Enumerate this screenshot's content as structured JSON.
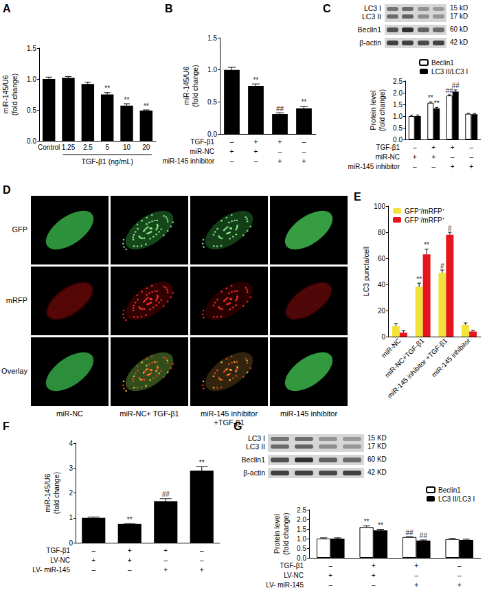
{
  "chart_data": [
    {
      "title": "A",
      "type": "bar",
      "categories": [
        "Control",
        "1.25",
        "2.5",
        "5",
        "10",
        "20"
      ],
      "group_label": "TGF-β1 (ng/mL)",
      "y_label": "miR-145/U6\n(fold change)",
      "ylim": [
        0,
        1.5
      ],
      "yticks": [
        {
          "value": 0,
          "label": "0.0"
        },
        {
          "value": 0.5,
          "label": "0.5"
        },
        {
          "value": 1,
          "label": "1.0"
        },
        {
          "value": 1.5,
          "label": "1.5"
        }
      ],
      "grid": false,
      "color": "#000000",
      "values": [
        1.0,
        1.02,
        0.92,
        0.75,
        0.57,
        0.49
      ],
      "errors": [
        0.03,
        0.02,
        0.03,
        0.03,
        0.03,
        0.01
      ],
      "annotations": [
        null,
        null,
        null,
        "**",
        "**",
        "**"
      ]
    },
    {
      "title": "B",
      "type": "bar",
      "y_label": "miR-145/U6\n(fold change)",
      "ylim": [
        0,
        1.5
      ],
      "yticks": [
        {
          "value": 0,
          "label": "0.0"
        },
        {
          "value": 0.5,
          "label": "0.5"
        },
        {
          "value": 1,
          "label": "1.0"
        },
        {
          "value": 1.5,
          "label": "1.5"
        }
      ],
      "grid": false,
      "color": "#000000",
      "values": [
        1.0,
        0.75,
        0.31,
        0.4
      ],
      "errors": [
        0.04,
        0.03,
        0.02,
        0.03
      ],
      "annotations": [
        null,
        "**",
        "##",
        "**"
      ],
      "conditions": [
        {
          "label": "TGF-β1",
          "values": [
            "–",
            "+",
            "+",
            "–"
          ]
        },
        {
          "label": "miR-NC",
          "values": [
            "+",
            "+",
            "–",
            "–"
          ]
        },
        {
          "label": "miR-145 inhibitor",
          "values": [
            "–",
            "–",
            "+",
            "+"
          ]
        }
      ]
    },
    {
      "title": "C",
      "type": "bar",
      "y_label": "Protein level\n(fold change)",
      "ylim": [
        0,
        2.5
      ],
      "yticks": [
        {
          "value": 0,
          "label": "0.0"
        },
        {
          "value": 0.5,
          "label": "0.5"
        },
        {
          "value": 1,
          "label": "1.0"
        },
        {
          "value": 1.5,
          "label": "1.5"
        },
        {
          "value": 2,
          "label": "2.0"
        },
        {
          "value": 2.5,
          "label": "2.5"
        }
      ],
      "grid": false,
      "legend": "top-right",
      "series": [
        {
          "name": "Beclin1",
          "color": "#ffffff",
          "values": [
            1.0,
            1.57,
            1.88,
            1.1
          ],
          "errors": [
            0.04,
            0.04,
            0.03,
            0.02
          ],
          "annotations": [
            null,
            "**",
            "##",
            null
          ]
        },
        {
          "name": "LC3 II/LC3 I",
          "color": "#000000",
          "values": [
            1.0,
            1.33,
            2.05,
            1.08
          ],
          "errors": [
            0.05,
            0.04,
            0.07,
            0.03
          ],
          "annotations": [
            null,
            "**",
            "##",
            null
          ]
        }
      ],
      "conditions": [
        {
          "label": "TGF-β1",
          "values": [
            "–",
            "+",
            "+",
            "–"
          ]
        },
        {
          "label": "miR-NC",
          "values": [
            "+",
            "+",
            "–",
            "–"
          ]
        },
        {
          "label": "miR-145 inhibitor",
          "values": [
            "–",
            "–",
            "+",
            "+"
          ]
        }
      ]
    },
    {
      "title": "E",
      "type": "bar",
      "categories": [
        "miR-NC",
        "miR-NC+TGF-β1",
        "miR-145 inhibitor +TGF-β1",
        "miR-145 inhibitor"
      ],
      "y_label": "LC3 puncta/cell",
      "ylim": [
        0,
        100
      ],
      "yticks": [
        0,
        20,
        40,
        60,
        80,
        100
      ],
      "grid": false,
      "legend": "top-left",
      "series": [
        {
          "name": "GFP⁺/mRFP⁺",
          "color": "#f2e33a",
          "values": [
            8,
            38,
            49,
            9
          ],
          "errors": [
            2,
            3,
            2,
            1.5
          ],
          "annotations": [
            null,
            "**",
            "#",
            null
          ]
        },
        {
          "name": "GFP⁻/mRFP⁺",
          "color": "#e8141c",
          "values": [
            3,
            63,
            78,
            4
          ],
          "errors": [
            1.5,
            4,
            2,
            1
          ],
          "annotations": [
            null,
            "**",
            "#",
            null
          ]
        }
      ]
    },
    {
      "title": "F",
      "type": "bar",
      "y_label": "miR-145/U6\n(fold change)",
      "ylim": [
        0,
        4
      ],
      "yticks": [
        0,
        1,
        2,
        3,
        4
      ],
      "grid": false,
      "color": "#000000",
      "values": [
        1.0,
        0.75,
        1.67,
        2.9
      ],
      "errors": [
        0.03,
        0.02,
        0.1,
        0.15
      ],
      "annotations": [
        null,
        "**",
        "##",
        "**"
      ],
      "conditions": [
        {
          "label": "TGF-β1",
          "values": [
            "–",
            "+",
            "+",
            "–"
          ]
        },
        {
          "label": "LV-NC",
          "values": [
            "+",
            "+",
            "–",
            "–"
          ]
        },
        {
          "label": "LV- miR-145",
          "values": [
            "–",
            "–",
            "+",
            "+"
          ]
        }
      ]
    },
    {
      "title": "G",
      "type": "bar",
      "y_label": "Protein level\n(fold change)",
      "ylim": [
        0,
        2.5
      ],
      "yticks": [
        {
          "value": 0,
          "label": "0.0"
        },
        {
          "value": 0.5,
          "label": "0.5"
        },
        {
          "value": 1,
          "label": "1.0"
        },
        {
          "value": 1.5,
          "label": "1.5"
        },
        {
          "value": 2,
          "label": "2.0"
        },
        {
          "value": 2.5,
          "label": "2.5"
        }
      ],
      "grid": false,
      "legend": "top-right",
      "series": [
        {
          "name": "Beclin1",
          "color": "#ffffff",
          "values": [
            1.0,
            1.6,
            1.08,
            0.97
          ],
          "errors": [
            0.04,
            0.06,
            0.02,
            0.04
          ],
          "annotations": [
            null,
            "**",
            "##",
            null
          ]
        },
        {
          "name": "LC3 II/LC3 I",
          "color": "#000000",
          "values": [
            1.0,
            1.43,
            0.9,
            0.93
          ],
          "errors": [
            0.04,
            0.05,
            0.03,
            0.04
          ],
          "annotations": [
            null,
            "**",
            "##",
            null
          ]
        }
      ],
      "conditions": [
        {
          "label": "TGF-β1",
          "values": [
            "–",
            "+",
            "+",
            "–"
          ]
        },
        {
          "label": "LV-NC",
          "values": [
            "+",
            "+",
            "–",
            "–"
          ]
        },
        {
          "label": "LV- miR-145",
          "values": [
            "–",
            "–",
            "+",
            "+"
          ]
        }
      ]
    }
  ],
  "blots": {
    "C": {
      "rows": [
        {
          "labels": [
            "LC3 I",
            "LC3 II"
          ],
          "sizes": [
            "15 kD",
            "17 kD"
          ]
        },
        {
          "labels": [
            "Beclin1"
          ],
          "sizes": [
            "60 kD"
          ]
        },
        {
          "labels": [
            "β-actin"
          ],
          "sizes": [
            "42 kD"
          ]
        }
      ]
    },
    "G": {
      "rows": [
        {
          "labels": [
            "LC3 I",
            "LC3 II"
          ],
          "sizes": [
            "15 KD",
            "17 KD"
          ]
        },
        {
          "labels": [
            "Beclin1"
          ],
          "sizes": [
            "60 KD"
          ]
        },
        {
          "labels": [
            "β-actin"
          ],
          "sizes": [
            "42 KD"
          ]
        }
      ]
    }
  },
  "images": {
    "title": "D",
    "rows": [
      "GFP",
      "mRFP",
      "Overlay"
    ],
    "columns": [
      "miR-NC",
      "miR-NC+ TGF-β1",
      "miR-145 inhibitor +TGF-β1",
      "miR-145 inhibitor"
    ]
  }
}
